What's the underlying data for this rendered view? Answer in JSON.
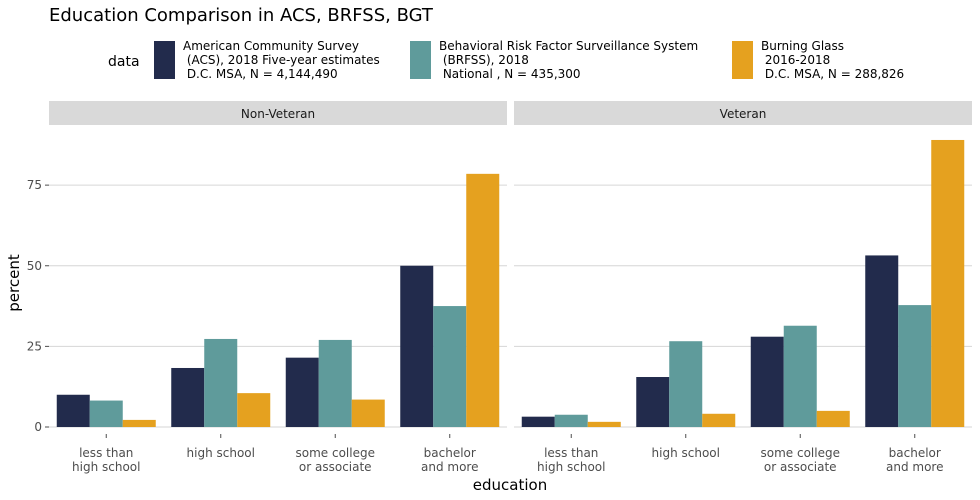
{
  "chart_data": {
    "type": "bar",
    "title": "Education Comparison in ACS, BRFSS, BGT",
    "xlabel": "education",
    "ylabel": "percent",
    "ylim": [
      0,
      93
    ],
    "yticks": [
      0,
      25,
      50,
      75
    ],
    "grid": true,
    "legend": {
      "title": "data",
      "position": "top",
      "entries": [
        {
          "lines": [
            "American Community Survey",
            " (ACS), 2018 Five-year estimates",
            " D.C. MSA, N = 4,144,490"
          ],
          "color": "#222b4c"
        },
        {
          "lines": [
            "Behavioral Risk Factor Surveillance System",
            " (BRFSS), 2018",
            " National , N = 435,300"
          ],
          "color": "#5f9b9b"
        },
        {
          "lines": [
            "Burning Glass",
            " 2016-2018",
            " D.C. MSA, N = 288,826"
          ],
          "color": "#e5a11f"
        }
      ]
    },
    "categories": [
      [
        "less than",
        "high school"
      ],
      [
        "high school"
      ],
      [
        "some college",
        "or associate"
      ],
      [
        "bachelor",
        "and more"
      ]
    ],
    "facets": [
      {
        "label": "Non-Veteran",
        "series": [
          {
            "color": "#222b4c",
            "values": [
              10,
              18.3,
              21.5,
              50
            ]
          },
          {
            "color": "#5f9b9b",
            "values": [
              8.2,
              27.3,
              27,
              37.5
            ]
          },
          {
            "color": "#e5a11f",
            "values": [
              2.2,
              10.5,
              8.5,
              78.5
            ]
          }
        ]
      },
      {
        "label": "Veteran",
        "series": [
          {
            "color": "#222b4c",
            "values": [
              3.2,
              15.5,
              28,
              53.2
            ]
          },
          {
            "color": "#5f9b9b",
            "values": [
              3.8,
              26.6,
              31.4,
              37.8
            ]
          },
          {
            "color": "#e5a11f",
            "values": [
              1.6,
              4.1,
              5,
              89
            ]
          }
        ]
      }
    ]
  }
}
